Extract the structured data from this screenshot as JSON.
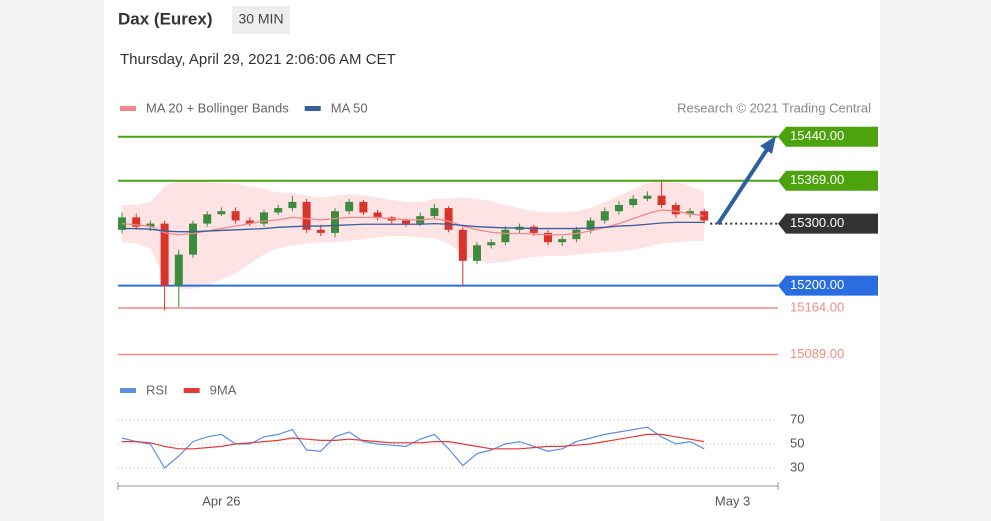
{
  "header": {
    "title": "Dax (Eurex)",
    "interval": "30 MIN",
    "timestamp": "Thursday, April 29, 2021 2:06:06 AM CET",
    "credit": "Research © 2021 Trading Central"
  },
  "chart_data": [
    {
      "type": "candlestick",
      "categories": [
        null,
        null,
        null,
        null,
        null,
        null,
        null,
        "Apr 26",
        null,
        null,
        null,
        null,
        null,
        null,
        null,
        null,
        null,
        null,
        null,
        null,
        null,
        null,
        null,
        null,
        null,
        null,
        null,
        null,
        null,
        null,
        null,
        null,
        null,
        null,
        null,
        null,
        null,
        null,
        null,
        null,
        null,
        null,
        null,
        "May 3"
      ],
      "open": [
        15290,
        15310,
        15295,
        15300,
        15200,
        15250,
        15300,
        15315,
        15320,
        15305,
        15300,
        15318,
        15325,
        15335,
        15290,
        15285,
        15320,
        15335,
        15318,
        15310,
        15305,
        15300,
        15312,
        15325,
        15290,
        15240,
        15265,
        15270,
        15290,
        15295,
        15285,
        15270,
        15275,
        15290,
        15305,
        15320,
        15330,
        15340,
        15345,
        15330,
        15315,
        15320,
        null,
        null
      ],
      "high": [
        15318,
        15316,
        15305,
        15305,
        15258,
        15305,
        15320,
        15326,
        15326,
        15310,
        15322,
        15330,
        15345,
        15340,
        15298,
        15325,
        15340,
        15338,
        15322,
        15312,
        15308,
        15318,
        15332,
        15328,
        15294,
        15270,
        15275,
        15296,
        15300,
        15298,
        15290,
        15280,
        15295,
        15310,
        15326,
        15336,
        15346,
        15352,
        15368,
        15334,
        15325,
        15324,
        null,
        null
      ],
      "low": [
        15284,
        15290,
        15288,
        15160,
        15165,
        15245,
        15295,
        15312,
        15300,
        15296,
        15295,
        15314,
        15320,
        15285,
        15280,
        15278,
        15315,
        15314,
        15305,
        15300,
        15295,
        15296,
        15308,
        15286,
        15200,
        15235,
        15260,
        15265,
        15284,
        15280,
        15265,
        15264,
        15270,
        15284,
        15300,
        15315,
        15326,
        15336,
        15325,
        15310,
        15310,
        15300,
        null,
        null
      ],
      "close": [
        15310,
        15295,
        15300,
        15200,
        15250,
        15300,
        15315,
        15320,
        15305,
        15300,
        15318,
        15325,
        15335,
        15290,
        15285,
        15320,
        15335,
        15318,
        15310,
        15305,
        15300,
        15312,
        15325,
        15290,
        15240,
        15265,
        15270,
        15290,
        15295,
        15285,
        15270,
        15275,
        15290,
        15305,
        15320,
        15330,
        15340,
        15345,
        15330,
        15315,
        15320,
        15305,
        null,
        null
      ],
      "up_color": "#3d8b3d",
      "down_color": "#d9342b",
      "series": [
        {
          "name": "MA 20 + Bollinger Bands",
          "color": "#f08a8a",
          "values": [
            15300,
            15298,
            15296,
            15285,
            15282,
            15284,
            15288,
            15292,
            15296,
            15300,
            15304,
            15306,
            15310,
            15308,
            15306,
            15308,
            15310,
            15310,
            15310,
            15308,
            15306,
            15306,
            15308,
            15304,
            15296,
            15290,
            15286,
            15284,
            15284,
            15283,
            15282,
            15282,
            15284,
            15288,
            15294,
            15300,
            15308,
            15316,
            15322,
            15320,
            15316,
            15312,
            null,
            null
          ],
          "band_upper": [
            15330,
            15330,
            15335,
            15360,
            15370,
            15370,
            15368,
            15366,
            15364,
            15360,
            15356,
            15350,
            15350,
            15345,
            15342,
            15345,
            15348,
            15345,
            15342,
            15338,
            15335,
            15335,
            15340,
            15340,
            15342,
            15340,
            15336,
            15330,
            15325,
            15320,
            15318,
            15318,
            15320,
            15325,
            15335,
            15345,
            15355,
            15365,
            15372,
            15368,
            15360,
            15352,
            null,
            null
          ],
          "band_lower": [
            15270,
            15268,
            15260,
            15210,
            15195,
            15195,
            15200,
            15210,
            15220,
            15235,
            15250,
            15260,
            15265,
            15268,
            15270,
            15270,
            15272,
            15275,
            15278,
            15280,
            15280,
            15278,
            15276,
            15268,
            15250,
            15240,
            15236,
            15238,
            15243,
            15246,
            15248,
            15248,
            15250,
            15252,
            15254,
            15255,
            15258,
            15262,
            15268,
            15270,
            15272,
            15272,
            null,
            null
          ],
          "band_color": "#fde3e3"
        },
        {
          "name": "MA 50",
          "color": "#3a5e9c",
          "values": [
            15292,
            15292,
            15291,
            15288,
            15287,
            15287,
            15288,
            15289,
            15290,
            15291,
            15292,
            15294,
            15295,
            15296,
            15296,
            15297,
            15298,
            15299,
            15299,
            15299,
            15299,
            15299,
            15300,
            15299,
            15297,
            15295,
            15294,
            15293,
            15293,
            15292,
            15292,
            15292,
            15292,
            15293,
            15294,
            15296,
            15297,
            15299,
            15301,
            15302,
            15302,
            15302,
            null,
            null
          ]
        }
      ],
      "levels": [
        {
          "value": 15440,
          "label": "15440.00",
          "color": "#4ca30d",
          "style": "solid",
          "tag": "box"
        },
        {
          "value": 15369,
          "label": "15369.00",
          "color": "#4ca30d",
          "style": "solid",
          "tag": "box"
        },
        {
          "value": 15300,
          "label": "15300.00",
          "color": "#333333",
          "style": "dotted",
          "tag": "box"
        },
        {
          "value": 15200,
          "label": "15200.00",
          "color": "#2a6de0",
          "style": "solid",
          "tag": "box"
        },
        {
          "value": 15164,
          "label": "15164.00",
          "color": "#f28b82",
          "style": "solid",
          "tag": "text"
        },
        {
          "value": 15089,
          "label": "15089.00",
          "color": "#f28b82",
          "style": "solid",
          "tag": "text"
        }
      ],
      "ylim": [
        15064,
        15467
      ]
    },
    {
      "type": "line",
      "series": [
        {
          "name": "RSI",
          "color": "#5b8ee6",
          "values": [
            55,
            52,
            50,
            30,
            40,
            52,
            56,
            58,
            50,
            50,
            56,
            58,
            62,
            45,
            44,
            56,
            60,
            52,
            50,
            49,
            48,
            54,
            58,
            46,
            32,
            42,
            45,
            50,
            52,
            48,
            44,
            46,
            52,
            55,
            58,
            60,
            62,
            64,
            56,
            50,
            52,
            46,
            null,
            null
          ]
        },
        {
          "name": "9MA",
          "color": "#e53935",
          "values": [
            52,
            52,
            51,
            48,
            46,
            46,
            47,
            48,
            50,
            51,
            52,
            53,
            55,
            54,
            53,
            53,
            54,
            53,
            52,
            51,
            51,
            51,
            52,
            52,
            50,
            48,
            46,
            46,
            46,
            47,
            48,
            48,
            49,
            50,
            52,
            54,
            56,
            58,
            58,
            56,
            54,
            52,
            null,
            null
          ]
        }
      ],
      "ylim": [
        20,
        80
      ],
      "yticks": [
        30,
        50,
        70
      ],
      "grid": true
    }
  ]
}
